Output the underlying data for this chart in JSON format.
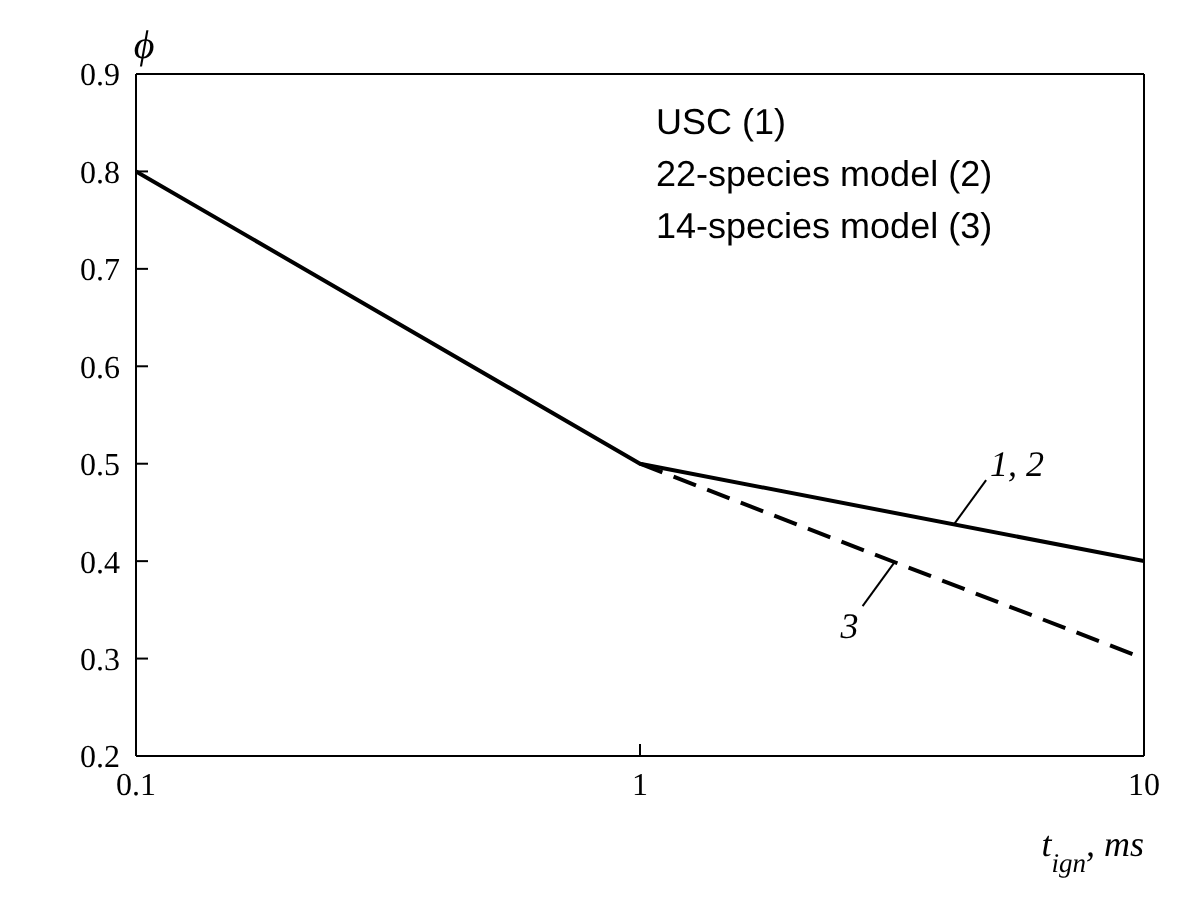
{
  "chart_data": {
    "type": "line",
    "xlabel": "t$_{ign}$, ms",
    "ylabel": "ϕ",
    "log": "x",
    "xlim": [
      0.1,
      10
    ],
    "xticks": [
      0.1,
      1,
      10
    ],
    "ylim": [
      0.2,
      0.9
    ],
    "yticks": [
      0.2,
      0.3,
      0.4,
      0.5,
      0.6,
      0.7,
      0.8,
      0.9
    ],
    "marker": "none",
    "series": [
      {
        "color": "#000000",
        "line_style": "solid",
        "x": [
          0.1,
          1,
          10
        ],
        "values": [
          0.8,
          0.5,
          0.4
        ]
      },
      {
        "color": "#000000",
        "line_style": "dashed",
        "x": [
          1,
          10
        ],
        "values": [
          0.5,
          0.3
        ]
      }
    ],
    "annotations": [
      "USC (1)",
      "22-species model (2)",
      "14-species model (3)",
      {
        "text": "1, 2",
        "x": 4.2,
        "y": 0.438
      },
      {
        "text": "3",
        "x": 3.2,
        "y": 0.399
      }
    ]
  }
}
